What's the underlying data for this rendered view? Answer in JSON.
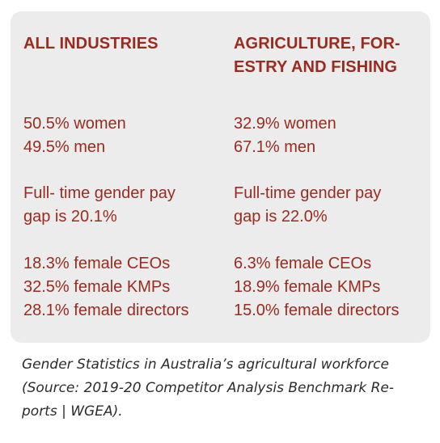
{
  "columns": [
    {
      "heading_line1": "ALL INDUSTRIES",
      "heading_line2": "",
      "women": "50.5% women",
      "men": "49.5% men",
      "pay_gap_line1": "Full- time gender pay",
      "pay_gap_line2": "gap is 20.1%",
      "ceos": "18.3% female CEOs",
      "kmps": "32.5% female KMPs",
      "directors": "28.1% female directors"
    },
    {
      "heading_line1": "AGRICULTURE, FOR-",
      "heading_line2": "ESTRY AND FISHING",
      "women": "32.9% women",
      "men": "67.1% men",
      "pay_gap_line1": "Full-time gender pay",
      "pay_gap_line2": "gap is 22.0%",
      "ceos": "6.3% female CEOs",
      "kmps": "18.9% female KMPs",
      "directors": "15.0% female directors"
    }
  ],
  "caption": {
    "line1": "Gender Statistics in Australia’s agricultural workforce",
    "line2": "(Source: 2019-20 Competitor Analysis Benchmark Re-",
    "line3": "ports | WGEA)."
  },
  "colors": {
    "panel_background": "#ececec",
    "text_accent": "#9a2b1f",
    "caption_text": "#2c2c2c"
  }
}
